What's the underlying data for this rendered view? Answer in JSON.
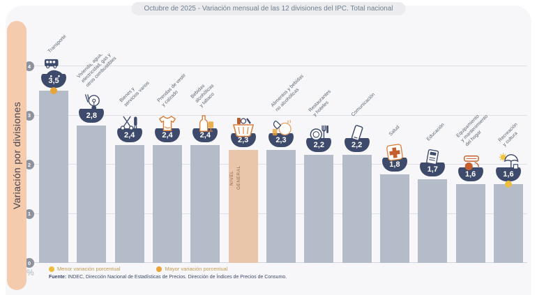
{
  "header": {
    "title": "Octubre de 2025 - Variación mensual de las 12 divisiones del IPC. Total nacional"
  },
  "sidebar": {
    "label": "Variación por divisiones"
  },
  "axis": {
    "ticks": [
      4,
      3,
      2,
      1,
      0
    ],
    "unit": "%"
  },
  "legend": {
    "menor": {
      "label": "Menor variación porcentual",
      "color": "#edbe3e"
    },
    "mayor": {
      "label": "Mayor variación porcentual",
      "color": "#e8a437"
    }
  },
  "source": {
    "prefix": "Fuente:",
    "text": " INDEC, Dirección Nacional de Estadísticas de Precios. Dirección de Índices de Precios de Consumo."
  },
  "chart_data": {
    "type": "bar",
    "title": "Octubre de 2025 - Variación mensual de las 12 divisiones del IPC. Total nacional",
    "ylabel": "Variación por divisiones",
    "ylim": [
      0,
      4
    ],
    "unit": "%",
    "grid": true,
    "bar_color": "#b4bcc9",
    "general_bar_color": "#e9c6a9",
    "badge_color": "#3e4a6b",
    "markers": {
      "mayor": "Transporte",
      "menor": "Recreación y cultura"
    },
    "general_bar_text": "NIVEL\nGENERAL",
    "columns": [
      {
        "category": "Transporte",
        "label": "Transporte",
        "value": 3.5,
        "display": "3,5",
        "icon": "bus-icon",
        "marker": "mayor"
      },
      {
        "category": "Vivienda, agua, electricidad, gas y otros combustibles",
        "label": "Vivienda, agua,\nelectricidad, gas y\notros combustibles",
        "value": 2.8,
        "display": "2,8",
        "icon": "bulb-icon"
      },
      {
        "category": "Bienes y servicios varios",
        "label": "Bienes y\nservicios varios",
        "value": 2.4,
        "display": "2,4",
        "icon": "scissors-icon"
      },
      {
        "category": "Prendas de vestir y calzado",
        "label": "Prendas de vestir\ny calzado",
        "value": 2.4,
        "display": "2,4",
        "icon": "tshirt-icon"
      },
      {
        "category": "Bebidas alcohólicas y tabaco",
        "label": "Bebidas\nalcohólicas\ny tabaco",
        "value": 2.4,
        "display": "2,4",
        "icon": "bottle-icon"
      },
      {
        "category": "Nivel general",
        "label": "",
        "value": 2.3,
        "display": "2,3",
        "icon": "basket-icon",
        "is_general": true
      },
      {
        "category": "Alimentos y bebidas no alcohólicas",
        "label": "Alimentos y bebidas\nno alcohólicas",
        "value": 2.3,
        "display": "2,3",
        "icon": "food-icon"
      },
      {
        "category": "Restaurantes y hoteles",
        "label": "Restaurantes\ny hoteles",
        "value": 2.2,
        "display": "2,2",
        "icon": "plate-icon"
      },
      {
        "category": "Comunicación",
        "label": "Comunicación",
        "value": 2.2,
        "display": "2,2",
        "icon": "phone-icon"
      },
      {
        "category": "Salud",
        "label": "Salud",
        "value": 1.8,
        "display": "1,8",
        "icon": "cross-icon"
      },
      {
        "category": "Educación",
        "label": "Educación",
        "value": 1.7,
        "display": "1,7",
        "icon": "book-icon"
      },
      {
        "category": "Equipamiento y mantenimiento del hogar",
        "label": "Equipamiento\ny mantenimiento\ndel hogar",
        "value": 1.6,
        "display": "1,6",
        "icon": "appliance-icon"
      },
      {
        "category": "Recreación y cultura",
        "label": "Recreación\ny cultura",
        "value": 1.6,
        "display": "1,6",
        "icon": "umbrella-sun-icon",
        "marker": "menor"
      }
    ]
  }
}
